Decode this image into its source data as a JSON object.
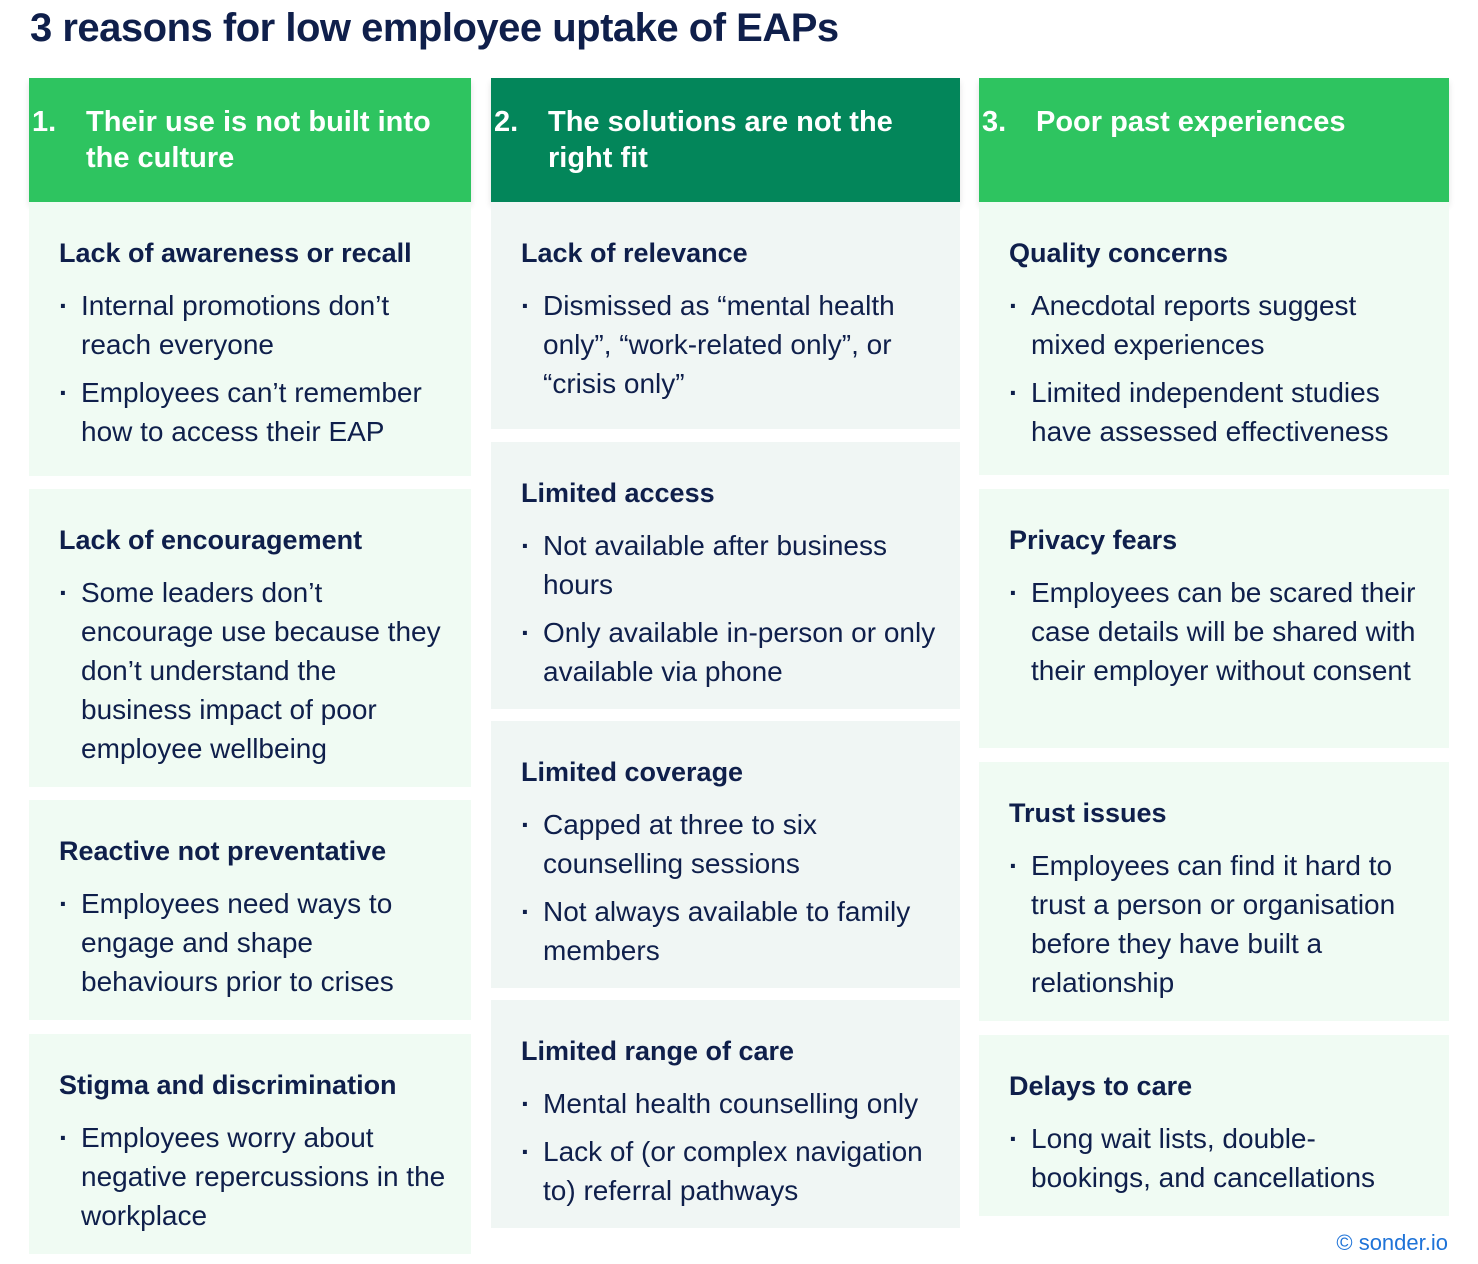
{
  "title": "3 reasons for low employee uptake of EAPs",
  "colors": {
    "header_light": "#2ec460",
    "header_dark": "#03865a",
    "card_bg": "#f0fbf3",
    "text": "#0f1f4b",
    "link": "#1e73d8"
  },
  "columns": [
    {
      "number": "1.",
      "header_lines": [
        "Their use is not built into",
        "the culture"
      ],
      "cards": [
        {
          "title": "Lack of awareness or recall",
          "bullets": [
            "Internal promotions don’t reach everyone",
            "Employees can’t remember how to access their EAP"
          ]
        },
        {
          "title": "Lack of encouragement",
          "bullets": [
            "Some leaders don’t encourage use because they don’t understand the business impact of poor employee wellbeing"
          ]
        },
        {
          "title": "Reactive not preventative",
          "bullets": [
            "Employees need ways to engage and shape behaviours prior to crises"
          ]
        },
        {
          "title": "Stigma and discrimination",
          "bullets": [
            "Employees worry about negative repercussions in the workplace"
          ]
        }
      ]
    },
    {
      "number": "2.",
      "header_lines": [
        "The solutions are not the",
        "right fit"
      ],
      "cards": [
        {
          "title": "Lack of relevance",
          "bullets": [
            "Dismissed as “mental health only”, “work-related only”, or “crisis only”"
          ]
        },
        {
          "title": "Limited access",
          "bullets": [
            "Not available after business hours",
            "Only available in-person or only available via phone"
          ]
        },
        {
          "title": "Limited coverage",
          "bullets": [
            "Capped at three to six counselling sessions",
            "Not always available to family members"
          ]
        },
        {
          "title": "Limited range of care",
          "bullets": [
            "Mental health counselling only",
            "Lack of (or complex navigation to) referral pathways"
          ]
        }
      ]
    },
    {
      "number": "3.",
      "header_lines": [
        "Poor past experiences"
      ],
      "cards": [
        {
          "title": "Quality concerns",
          "bullets": [
            "Anecdotal reports suggest mixed experiences",
            "Limited independent studies have assessed effectiveness"
          ]
        },
        {
          "title": "Privacy fears",
          "bullets": [
            "Employees can be scared their case details will be shared with their employer without consent"
          ]
        },
        {
          "title": "Trust issues",
          "bullets": [
            "Employees can find it hard to trust a person or organisation before they have built a relationship"
          ]
        },
        {
          "title": "Delays to care",
          "bullets": [
            "Long wait lists, double-bookings, and cancellations"
          ]
        }
      ]
    }
  ],
  "footer": "© sonder.io"
}
